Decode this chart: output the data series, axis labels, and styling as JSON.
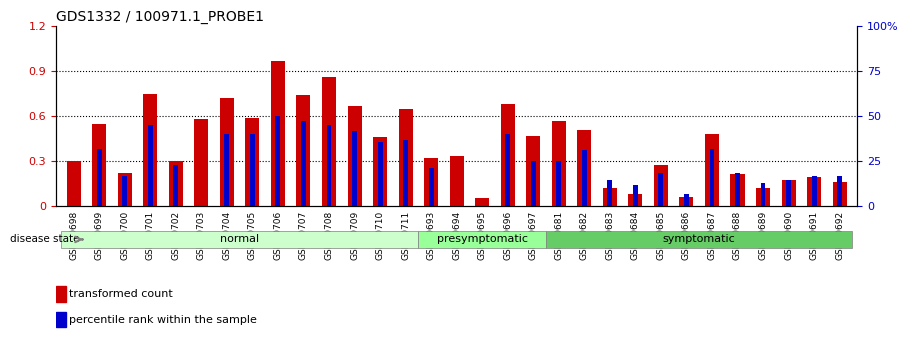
{
  "title": "GDS1332 / 100971.1_PROBE1",
  "samples": [
    "GSM30698",
    "GSM30699",
    "GSM30700",
    "GSM30701",
    "GSM30702",
    "GSM30703",
    "GSM30704",
    "GSM30705",
    "GSM30706",
    "GSM30707",
    "GSM30708",
    "GSM30709",
    "GSM30710",
    "GSM30711",
    "GSM30693",
    "GSM30694",
    "GSM30695",
    "GSM30696",
    "GSM30697",
    "GSM30681",
    "GSM30682",
    "GSM30683",
    "GSM30684",
    "GSM30685",
    "GSM30686",
    "GSM30687",
    "GSM30688",
    "GSM30689",
    "GSM30690",
    "GSM30691",
    "GSM30692"
  ],
  "transformed_count": [
    0.3,
    0.55,
    0.22,
    0.75,
    0.3,
    0.58,
    0.72,
    0.59,
    0.97,
    0.74,
    0.86,
    0.67,
    0.46,
    0.65,
    0.32,
    0.33,
    0.05,
    0.68,
    0.47,
    0.57,
    0.51,
    0.12,
    0.08,
    0.27,
    0.06,
    0.48,
    0.21,
    0.12,
    0.17,
    0.19,
    0.16
  ],
  "percentile_rank": [
    0.0,
    0.38,
    0.2,
    0.54,
    0.27,
    0.0,
    0.48,
    0.48,
    0.6,
    0.57,
    0.54,
    0.5,
    0.43,
    0.44,
    0.25,
    0.0,
    0.0,
    0.48,
    0.3,
    0.3,
    0.37,
    0.17,
    0.14,
    0.22,
    0.08,
    0.38,
    0.22,
    0.15,
    0.17,
    0.2,
    0.2
  ],
  "groups": [
    {
      "name": "normal",
      "count": 14,
      "color": "#ccffcc"
    },
    {
      "name": "presymptomatic",
      "count": 5,
      "color": "#99ff99"
    },
    {
      "name": "symptomatic",
      "count": 12,
      "color": "#66cc66"
    }
  ],
  "bar_color_red": "#cc0000",
  "bar_color_blue": "#0000cc",
  "ylim_left": [
    0,
    1.2
  ],
  "ylim_right": [
    0,
    100
  ],
  "yticks_left": [
    0,
    0.3,
    0.6,
    0.9,
    1.2
  ],
  "yticks_right": [
    0,
    25,
    50,
    75,
    100
  ],
  "background_color": "#ffffff",
  "grid_color": "#000000",
  "label_disease_state": "disease state",
  "legend_red": "transformed count",
  "legend_blue": "percentile rank within the sample"
}
